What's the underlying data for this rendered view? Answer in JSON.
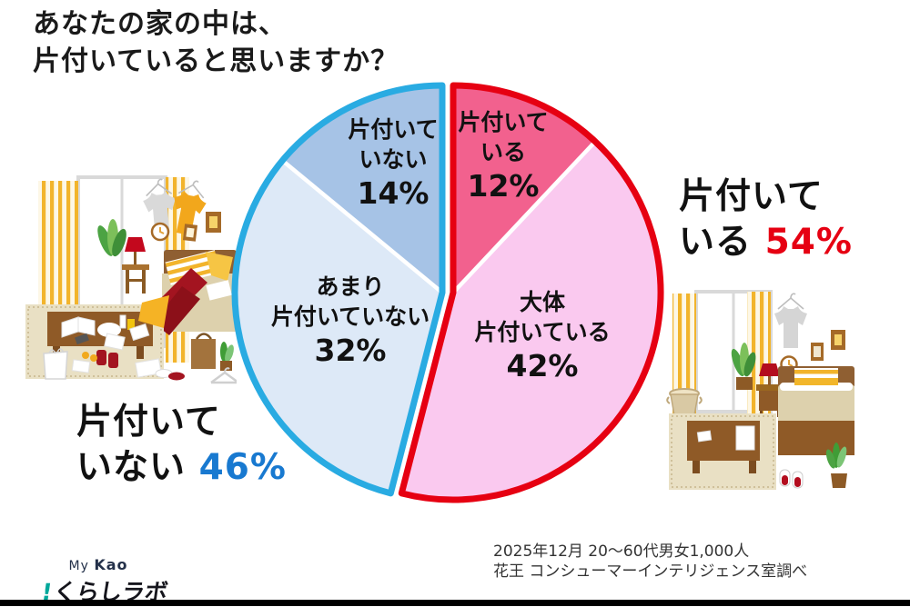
{
  "title": {
    "line1": "あなたの家の中は、",
    "line2": "片付いていると思いますか？"
  },
  "chart_data": {
    "type": "pie",
    "title": "あなたの家の中は、片付いていると思いますか？",
    "unit": "%",
    "start_angle_deg": 0,
    "direction": "clockwise",
    "legend": "none",
    "labels_inside": true,
    "slices": [
      {
        "label": "片付いている",
        "value": 12,
        "pct_text": "12%",
        "label_line1": "片付いて",
        "label_line2": "いる",
        "color": "#f2618e",
        "group": "tidy"
      },
      {
        "label": "大体片付いている",
        "value": 42,
        "pct_text": "42%",
        "label_line1": "大体",
        "label_line2": "片付いている",
        "color": "#fac9ef",
        "group": "tidy"
      },
      {
        "label": "あまり片付いていない",
        "value": 32,
        "pct_text": "32%",
        "label_line1": "あまり",
        "label_line2": "片付いていない",
        "color": "#dde9f7",
        "group": "untidy"
      },
      {
        "label": "片付いていない",
        "value": 14,
        "pct_text": "14%",
        "label_line1": "片付いて",
        "label_line2": "いない",
        "color": "#a6c3e6",
        "group": "untidy"
      }
    ],
    "groups": [
      {
        "id": "tidy",
        "name": "片付いている",
        "total": 54,
        "outline_color": "#e60012"
      },
      {
        "id": "untidy",
        "name": "片付いていない",
        "total": 46,
        "outline_color": "#29abe2"
      }
    ]
  },
  "annotations": {
    "right": {
      "line1": "片付いて",
      "line2_prefix": "いる ",
      "pct": "54%",
      "pct_color": "#e60012"
    },
    "left": {
      "line1": "片付いて",
      "line2_prefix": "いない ",
      "pct": "46%",
      "pct_color": "#1879d0"
    }
  },
  "source": {
    "line1": "2025年12月  20～60代男女1,000人",
    "line2": "花王  コンシューマーインテリジェンス室調べ"
  },
  "logo": {
    "my": "My",
    "kao": "Kao",
    "mark": "!",
    "text": "くらしラボ"
  }
}
